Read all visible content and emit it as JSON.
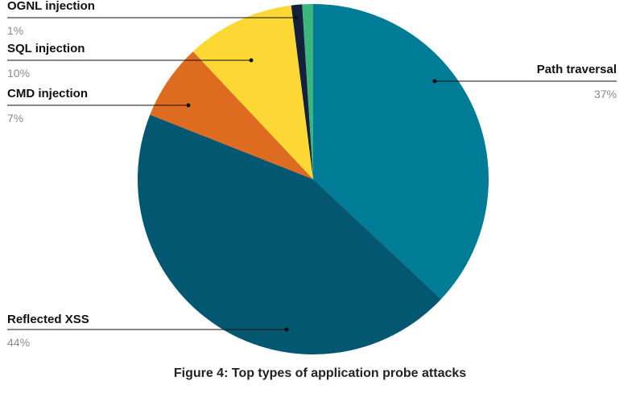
{
  "chart_data": {
    "type": "pie",
    "caption": "Figure 4: Top types of application probe attacks",
    "slices": [
      {
        "name": "Path traversal",
        "value": 37,
        "label": "37%",
        "color": "#007c96"
      },
      {
        "name": "Reflected XSS",
        "value": 44,
        "label": "44%",
        "color": "#045771"
      },
      {
        "name": "CMD injection",
        "value": 7,
        "label": "7%",
        "color": "#dd6b20"
      },
      {
        "name": "SQL injection",
        "value": 10,
        "label": "10%",
        "color": "#fdd835"
      },
      {
        "name": "OGNL injection",
        "value": 1,
        "label": "1%",
        "color": "#15203c"
      },
      {
        "name": "",
        "value": 1,
        "label": "",
        "color": "#3bb77e"
      }
    ]
  }
}
